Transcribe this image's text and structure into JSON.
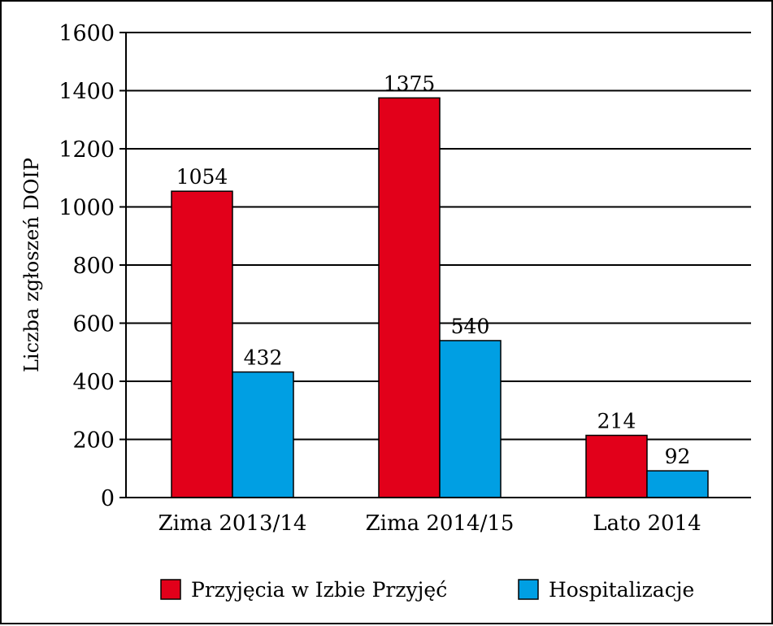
{
  "chart_data": {
    "type": "bar",
    "categories": [
      "Zima 2013/14",
      "Zima 2014/15",
      "Lato 2014"
    ],
    "series": [
      {
        "name": "Przyjęcia w Izbie Przyjęć",
        "color": "#e2001a",
        "values": [
          1054,
          1375,
          214
        ]
      },
      {
        "name": "Hospitalizacje",
        "color": "#009fe3",
        "values": [
          432,
          540,
          92
        ]
      }
    ],
    "ylabel": "Liczba zgłoszeń DOIP",
    "xlabel": "",
    "ylim": [
      0,
      1600
    ],
    "yticks": [
      0,
      200,
      400,
      600,
      800,
      1000,
      1200,
      1400,
      1600
    ],
    "grid": true,
    "legend_position": "bottom"
  }
}
